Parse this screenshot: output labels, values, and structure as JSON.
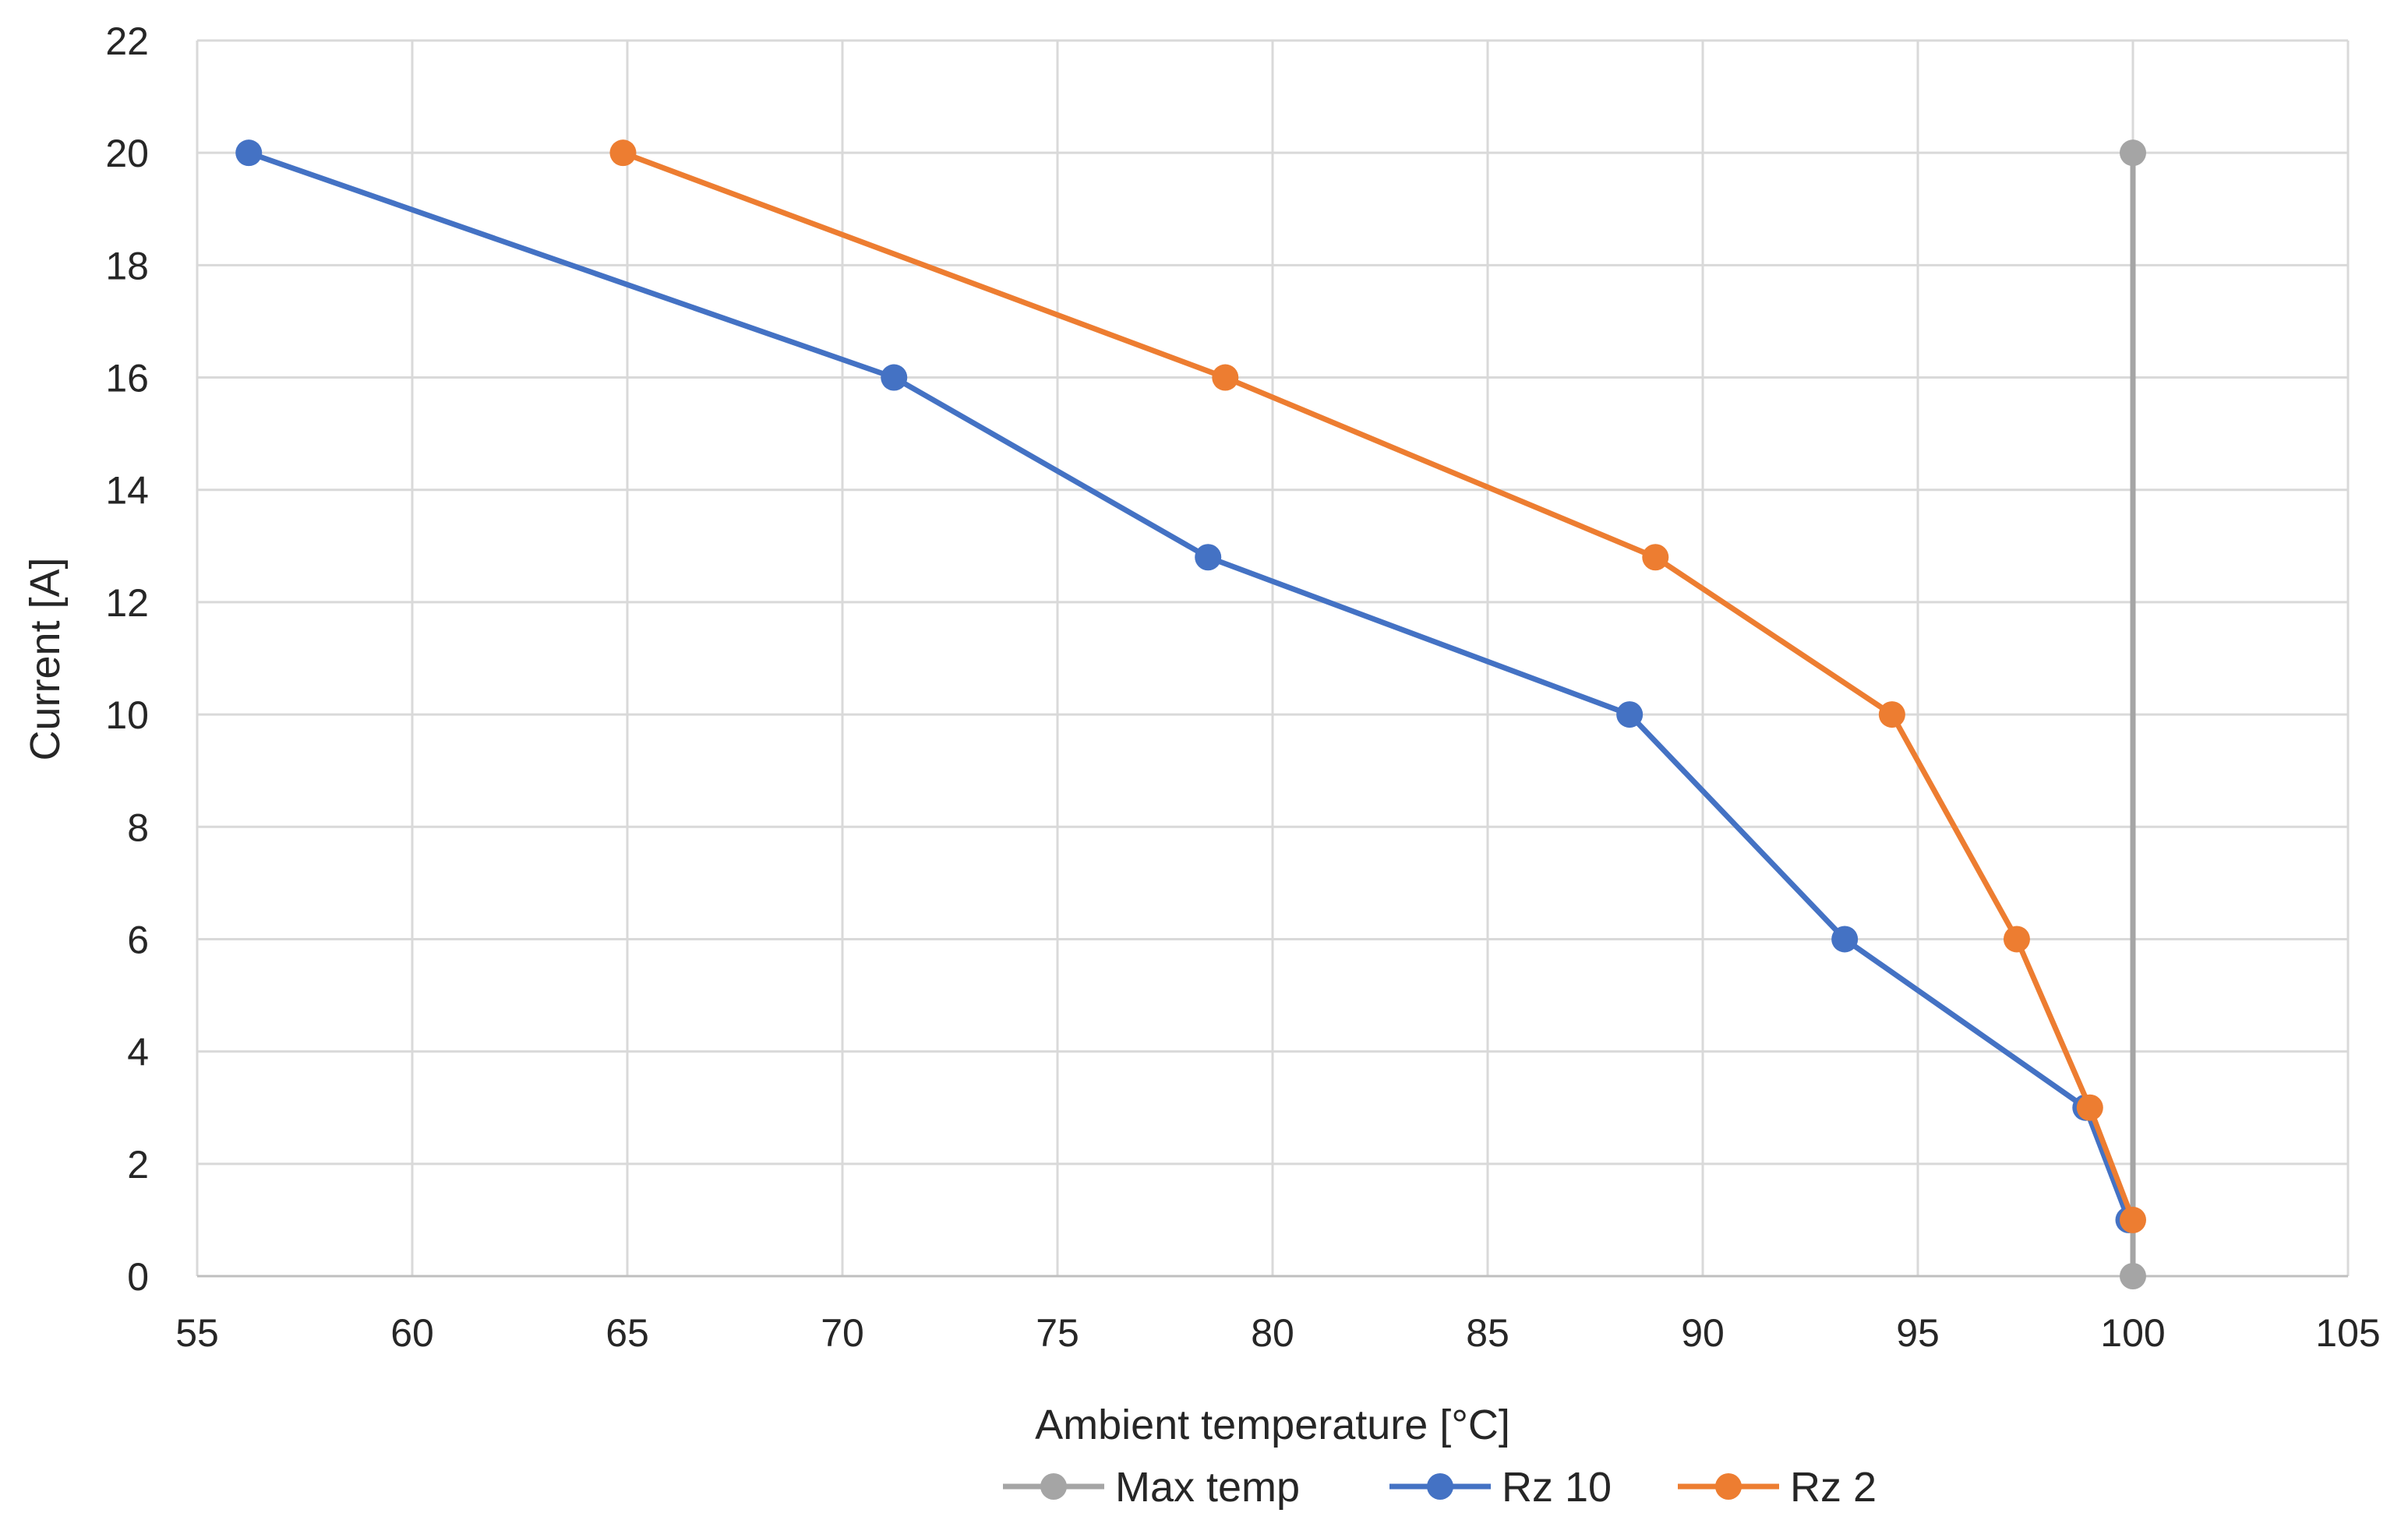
{
  "chart_data": {
    "type": "line",
    "title": "",
    "xlabel": "Ambient temperature [°C]",
    "ylabel": "Current  [A]",
    "xlim": [
      55,
      105
    ],
    "ylim": [
      0,
      22
    ],
    "xticks": [
      55,
      60,
      65,
      70,
      75,
      80,
      85,
      90,
      95,
      100,
      105
    ],
    "yticks": [
      0,
      2,
      4,
      6,
      8,
      10,
      12,
      14,
      16,
      18,
      20,
      22
    ],
    "grid": true,
    "legend_position": "bottom",
    "series": [
      {
        "name": "Max temp",
        "color": "#a5a5a5",
        "x": [
          100,
          100
        ],
        "y": [
          0,
          20
        ]
      },
      {
        "name": "Rz 10",
        "color": "#4472c4",
        "x": [
          56.2,
          71.2,
          78.5,
          88.3,
          93.3,
          98.9,
          99.9
        ],
        "y": [
          20,
          16,
          12.8,
          10,
          6,
          3,
          1
        ]
      },
      {
        "name": "Rz 2",
        "color": "#ed7d31",
        "x": [
          64.9,
          78.9,
          88.9,
          94.4,
          97.3,
          99.0,
          100.0
        ],
        "y": [
          20,
          16,
          12.8,
          10,
          6,
          3,
          1
        ]
      }
    ]
  }
}
